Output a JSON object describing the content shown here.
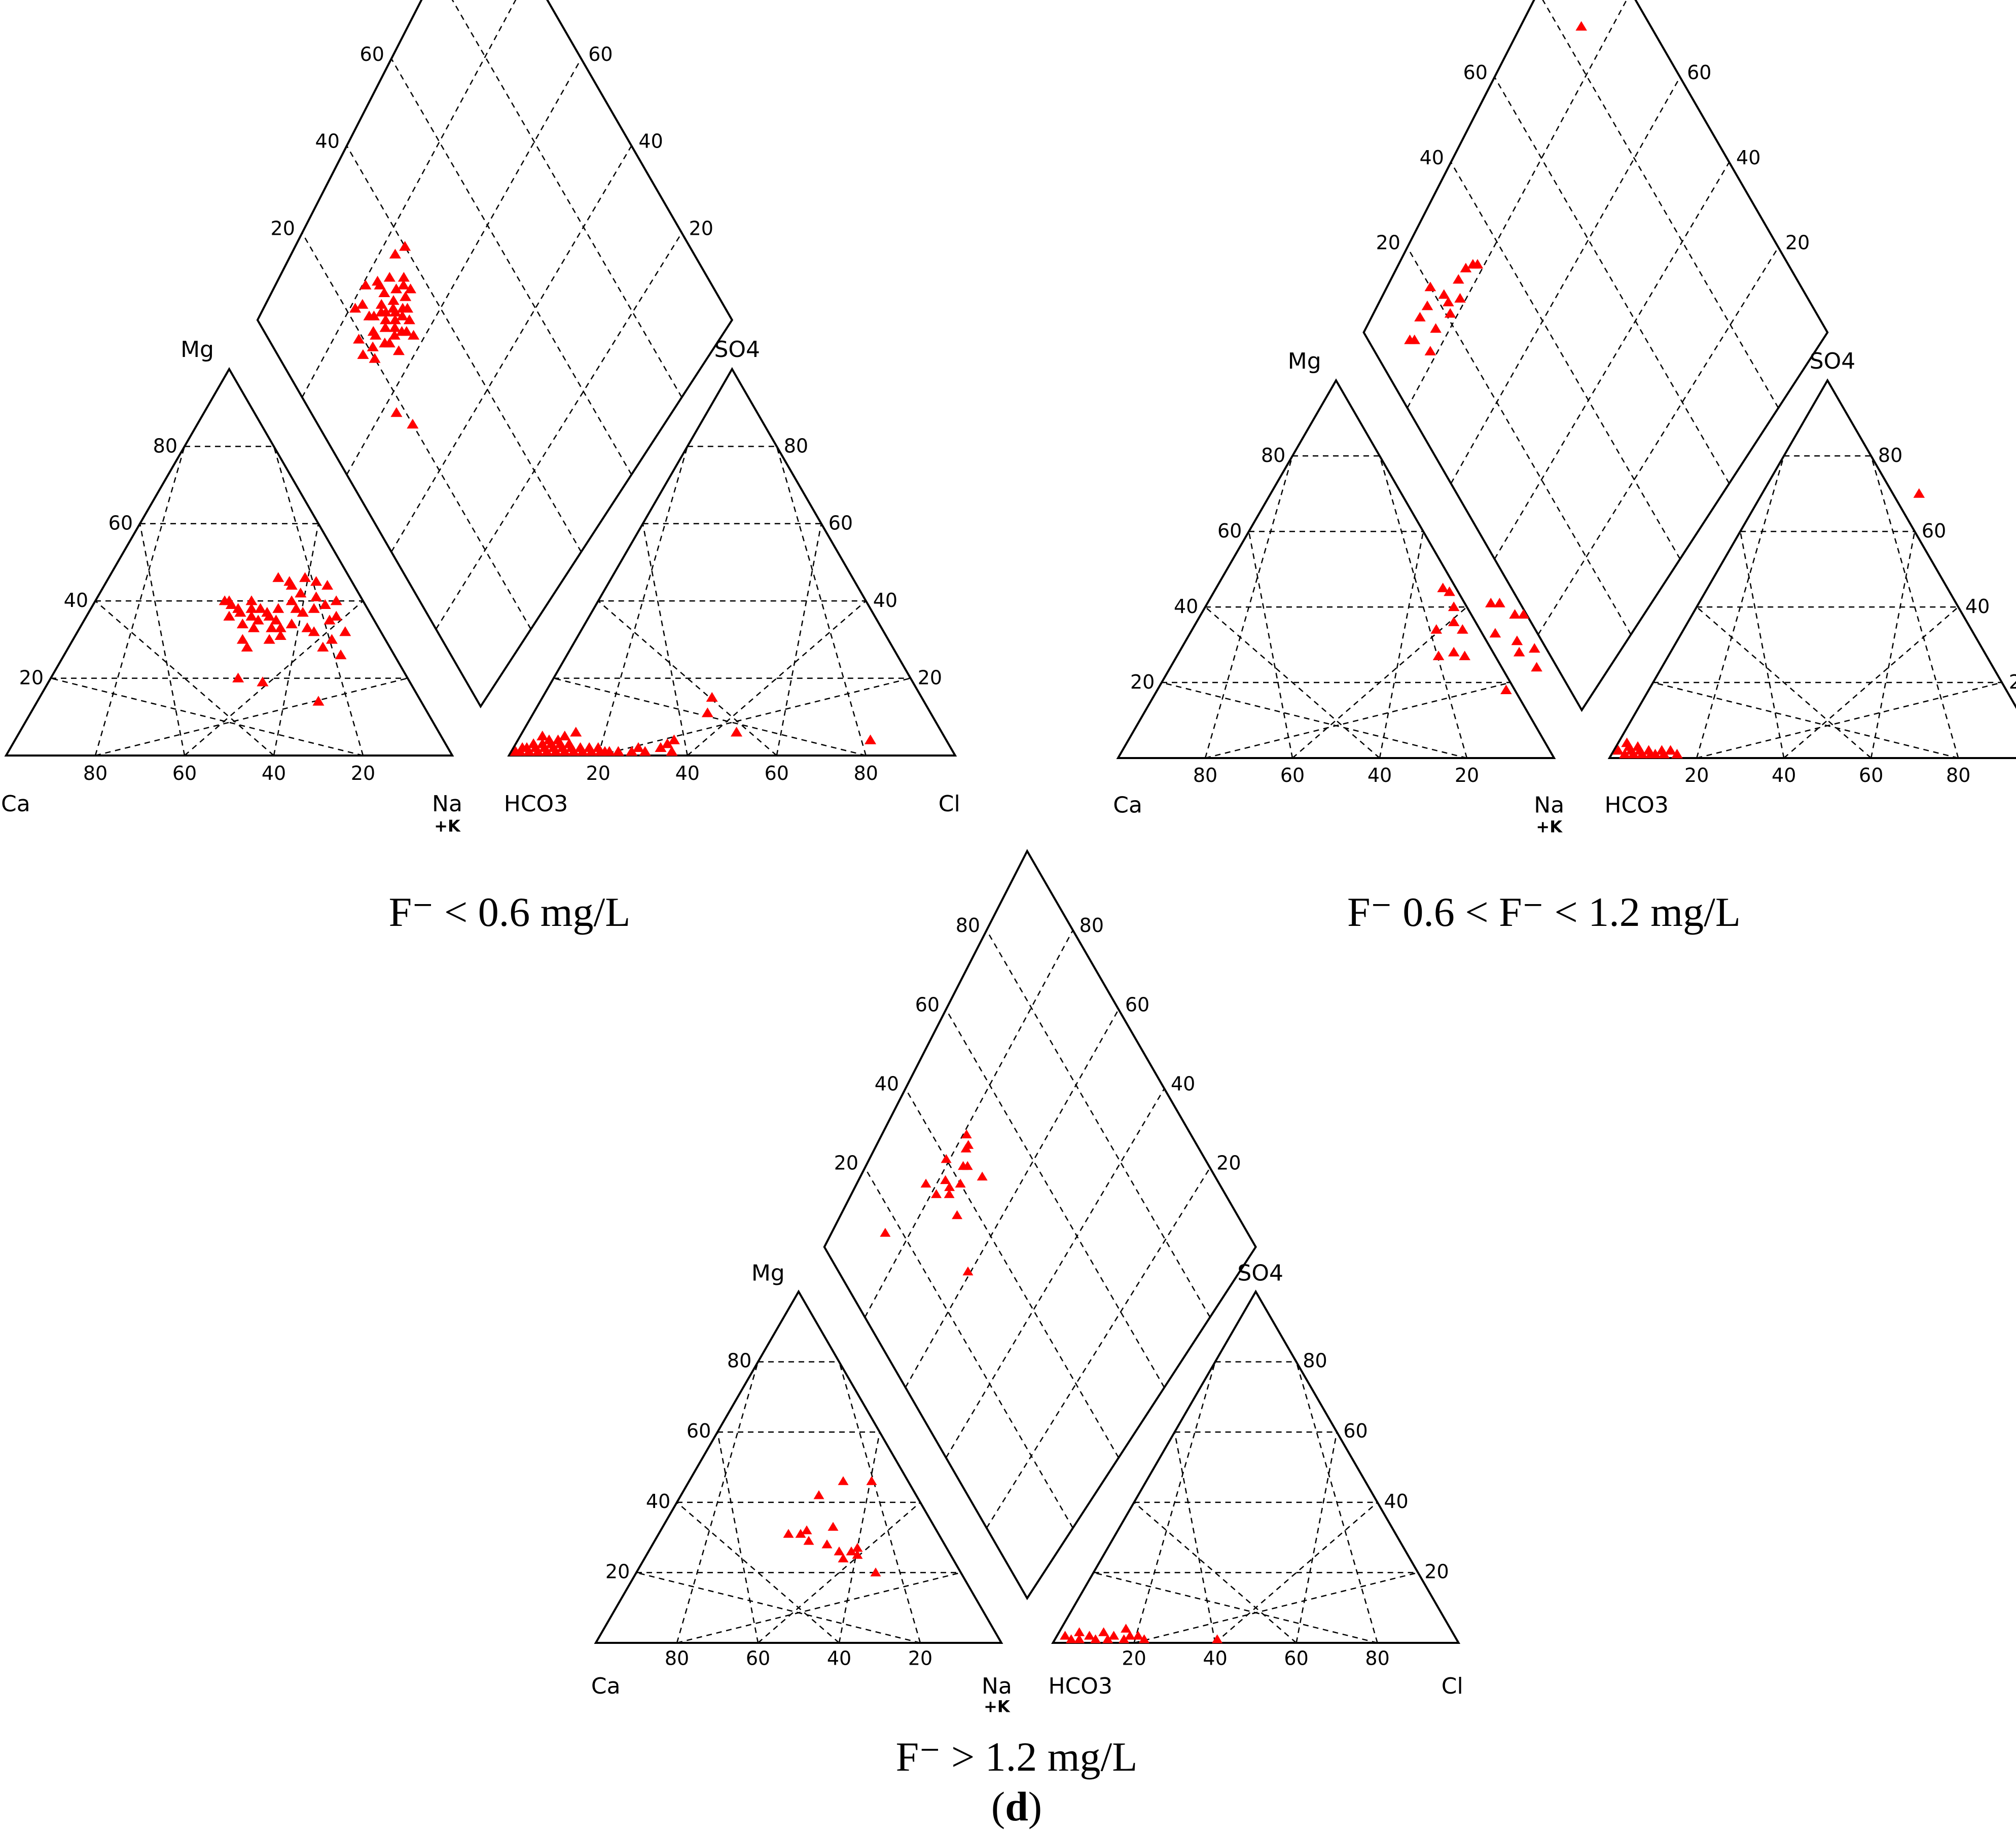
{
  "panels": [
    {
      "caption": "F⁻ < 0.6 mg/L",
      "labels": {
        "ca": "Ca",
        "mg": "Mg",
        "na": "Na",
        "nak": "+K",
        "hco3": "HCO3",
        "so4": "SO4",
        "cl": "Cl"
      },
      "ticks": [
        "80",
        "60",
        "40",
        "20"
      ],
      "cations": [
        [
          42,
          38
        ],
        [
          40,
          37
        ],
        [
          38,
          38
        ],
        [
          36,
          38
        ],
        [
          44,
          40
        ],
        [
          46,
          38
        ],
        [
          45,
          42
        ],
        [
          43,
          35
        ],
        [
          41,
          36
        ],
        [
          48,
          37
        ],
        [
          50,
          38
        ],
        [
          47,
          34
        ],
        [
          52,
          39
        ],
        [
          49,
          41
        ],
        [
          39,
          35
        ],
        [
          37,
          36
        ],
        [
          55,
          35
        ],
        [
          53,
          32
        ],
        [
          51,
          33
        ],
        [
          44,
          30
        ],
        [
          46,
          31
        ],
        [
          40,
          28
        ],
        [
          38,
          30
        ],
        [
          56,
          36
        ],
        [
          54,
          40
        ],
        [
          42,
          44
        ],
        [
          44,
          46
        ],
        [
          41,
          45
        ],
        [
          38,
          46
        ],
        [
          50,
          44
        ],
        [
          47,
          45
        ],
        [
          35,
          40
        ],
        [
          33,
          38
        ],
        [
          31,
          39
        ],
        [
          30,
          40
        ],
        [
          29,
          40
        ],
        [
          34,
          37
        ],
        [
          32,
          36
        ],
        [
          36,
          34
        ],
        [
          60,
          32
        ],
        [
          58,
          30
        ],
        [
          57,
          28
        ],
        [
          62,
          26
        ],
        [
          42,
          20
        ],
        [
          48,
          19
        ],
        [
          63,
          14
        ],
        [
          45,
          33
        ],
        [
          43,
          33
        ],
        [
          39,
          33
        ]
      ],
      "anions": [
        [
          2,
          1
        ],
        [
          4,
          1
        ],
        [
          6,
          1
        ],
        [
          8,
          1
        ],
        [
          10,
          1
        ],
        [
          12,
          1
        ],
        [
          14,
          1
        ],
        [
          16,
          1
        ],
        [
          18,
          1
        ],
        [
          20,
          1
        ],
        [
          22,
          1
        ],
        [
          24,
          1
        ],
        [
          3,
          2
        ],
        [
          5,
          2
        ],
        [
          7,
          2
        ],
        [
          9,
          2
        ],
        [
          11,
          2
        ],
        [
          13,
          2
        ],
        [
          15,
          2
        ],
        [
          6,
          3
        ],
        [
          8,
          3
        ],
        [
          10,
          3
        ],
        [
          12,
          3
        ],
        [
          7,
          4
        ],
        [
          9,
          4
        ],
        [
          10,
          5
        ],
        [
          12,
          6
        ],
        [
          27,
          1
        ],
        [
          30,
          1
        ],
        [
          33,
          2
        ],
        [
          36,
          1
        ],
        [
          34,
          3
        ],
        [
          28,
          2
        ],
        [
          35,
          4
        ],
        [
          38,
          15
        ],
        [
          48,
          6
        ],
        [
          39,
          11
        ],
        [
          79,
          4
        ],
        [
          1,
          1
        ],
        [
          2,
          2
        ],
        [
          4,
          3
        ],
        [
          17,
          2
        ],
        [
          19,
          2
        ],
        [
          21,
          1
        ],
        [
          5,
          5
        ]
      ],
      "diamond": [
        [
          72,
          26
        ],
        [
          75,
          27
        ],
        [
          70,
          28
        ],
        [
          73,
          30
        ],
        [
          68,
          29
        ],
        [
          76,
          28
        ],
        [
          71,
          32
        ],
        [
          74,
          31
        ],
        [
          69,
          25
        ],
        [
          77,
          24
        ],
        [
          70,
          24
        ],
        [
          73,
          23
        ],
        [
          66,
          26
        ],
        [
          67,
          30
        ],
        [
          72,
          34
        ],
        [
          70,
          33
        ],
        [
          68,
          32
        ],
        [
          75,
          36
        ],
        [
          77,
          30
        ],
        [
          79,
          30
        ],
        [
          65,
          31
        ],
        [
          78,
          33
        ],
        [
          74,
          35
        ],
        [
          80,
          37
        ],
        [
          72,
          36
        ],
        [
          80,
          24
        ],
        [
          70,
          20
        ],
        [
          76,
          19
        ],
        [
          73,
          18
        ],
        [
          74,
          28
        ],
        [
          71,
          29
        ],
        [
          69,
          27
        ],
        [
          80,
          30
        ],
        [
          74,
          23
        ],
        [
          81,
          22
        ],
        [
          72,
          30
        ],
        [
          73,
          27
        ],
        [
          75,
          33
        ],
        [
          70,
          31
        ],
        [
          76,
          25
        ],
        [
          72,
          21
        ],
        [
          79,
          40
        ],
        [
          82,
          27
        ],
        [
          53,
          20
        ],
        [
          58,
          18
        ]
      ]
    },
    {
      "caption": "F⁻ 0.6 < F⁻ < 1.2 mg/L",
      "labels": {
        "ca": "Ca",
        "mg": "Mg",
        "na": "Na",
        "nak": "+K",
        "hco3": "HCO3",
        "so4": "SO4",
        "cl": "Cl"
      },
      "ticks": [
        "80",
        "60",
        "40",
        "20"
      ],
      "cations": [
        [
          59,
          36
        ],
        [
          56,
          34
        ],
        [
          54,
          44
        ],
        [
          57,
          40
        ],
        [
          60,
          27
        ],
        [
          63,
          28
        ],
        [
          66,
          27
        ],
        [
          62,
          34
        ],
        [
          70,
          33
        ],
        [
          72,
          38
        ],
        [
          74,
          38
        ],
        [
          76,
          31
        ],
        [
          78,
          28
        ],
        [
          81,
          29
        ],
        [
          84,
          24
        ],
        [
          67,
          41
        ],
        [
          65,
          41
        ],
        [
          80,
          18
        ],
        [
          52,
          45
        ]
      ],
      "anions": [
        [
          2,
          4
        ],
        [
          3,
          3
        ],
        [
          4,
          2
        ],
        [
          5,
          3
        ],
        [
          6,
          2
        ],
        [
          7,
          1
        ],
        [
          8,
          2
        ],
        [
          9,
          1
        ],
        [
          10,
          1
        ],
        [
          12,
          1
        ],
        [
          13,
          2
        ],
        [
          15,
          1
        ],
        [
          1,
          2
        ],
        [
          3,
          1
        ],
        [
          5,
          1
        ],
        [
          11,
          2
        ],
        [
          36,
          70
        ]
      ],
      "diamond": [
        [
          88,
          10
        ],
        [
          90,
          14
        ],
        [
          85,
          16
        ],
        [
          92,
          20
        ],
        [
          84,
          25
        ],
        [
          88,
          22
        ],
        [
          90,
          17
        ],
        [
          87,
          27
        ],
        [
          86,
          22
        ],
        [
          86,
          32
        ],
        [
          84,
          21
        ],
        [
          89,
          9
        ],
        [
          85,
          33
        ],
        [
          83,
          12
        ],
        [
          87,
          30
        ],
        [
          96,
          85
        ]
      ]
    },
    {
      "caption": "F⁻ > 1.2 mg/L",
      "sub": "(d)",
      "sub_letter": "d",
      "labels": {
        "ca": "Ca",
        "mg": "Mg",
        "na": "Na",
        "nak": "+K",
        "hco3": "HCO3",
        "so4": "SO4",
        "cl": "Cl"
      },
      "ticks": [
        "80",
        "60",
        "40",
        "20"
      ],
      "cations": [
        [
          34,
          42
        ],
        [
          38,
          46
        ],
        [
          45,
          46
        ],
        [
          32,
          31
        ],
        [
          35,
          31
        ],
        [
          38,
          29
        ],
        [
          36,
          32
        ],
        [
          42,
          33
        ],
        [
          47,
          26
        ],
        [
          52,
          25
        ],
        [
          49,
          24
        ],
        [
          50,
          26
        ],
        [
          51,
          27
        ],
        [
          59,
          20
        ],
        [
          43,
          28
        ]
      ],
      "anions": [
        [
          2,
          2
        ],
        [
          4,
          1
        ],
        [
          5,
          3
        ],
        [
          6,
          1
        ],
        [
          8,
          2
        ],
        [
          10,
          1
        ],
        [
          11,
          3
        ],
        [
          14,
          2
        ],
        [
          16,
          4
        ],
        [
          17,
          1
        ],
        [
          20,
          2
        ],
        [
          13,
          1
        ],
        [
          22,
          1
        ],
        [
          18,
          2
        ],
        [
          40,
          1
        ]
      ],
      "diamond": [
        [
          88,
          16
        ],
        [
          86,
          32
        ],
        [
          85,
          40
        ],
        [
          82,
          47
        ],
        [
          80,
          37
        ],
        [
          82,
          37
        ],
        [
          79,
          44
        ],
        [
          82,
          33
        ],
        [
          82,
          46
        ],
        [
          84,
          48
        ],
        [
          79,
          36
        ],
        [
          78,
          40
        ],
        [
          80,
          43
        ],
        [
          74,
          35
        ],
        [
          74,
          46
        ],
        [
          63,
          30
        ]
      ]
    }
  ]
}
